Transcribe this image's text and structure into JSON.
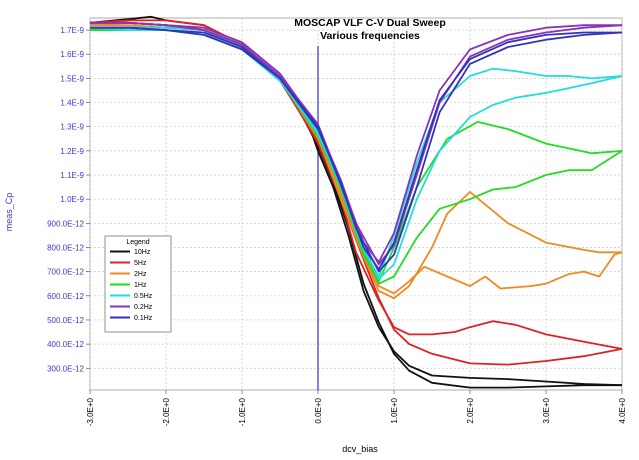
{
  "chart_data": {
    "type": "line",
    "title": "MOSCAP VLF C-V Dual Sweep",
    "subtitle": "Various frequencies",
    "xlabel": "dcv_bias",
    "ylabel": "meas_Cp",
    "xlim": [
      -3.0,
      4.0
    ],
    "ylim": [
      2.1e-10,
      1.75e-09
    ],
    "x_ticks": [
      -3,
      -2,
      -1,
      0,
      1,
      2,
      3,
      4
    ],
    "x_tick_labels": [
      "-3.0E+0",
      "-2.0E+0",
      "-1.0E+0",
      "0.0E+0",
      "1.0E+0",
      "2.0E+0",
      "3.0E+0",
      "4.0E+0"
    ],
    "y_ticks": [
      3e-10,
      4e-10,
      5e-10,
      6e-10,
      7e-10,
      8e-10,
      9e-10,
      1e-09,
      1.1e-09,
      1.2e-09,
      1.3e-09,
      1.4e-09,
      1.5e-09,
      1.6e-09,
      1.7e-09
    ],
    "y_tick_labels": [
      "300.0E-12",
      "400.0E-12",
      "500.0E-12",
      "600.0E-12",
      "700.0E-12",
      "800.0E-12",
      "900.0E-12",
      "1.0E-9",
      "1.1E-9",
      "1.2E-9",
      "1.3E-9",
      "1.4E-9",
      "1.5E-9",
      "1.6E-9",
      "1.7E-9"
    ],
    "vertical_marker_x": 0,
    "legend": {
      "title": "Legend",
      "position": "lower-left"
    },
    "series": [
      {
        "name": "10Hz",
        "color": "#111111",
        "forward": [
          [
            -3.0,
            1.73e-09
          ],
          [
            -2.5,
            1.745e-09
          ],
          [
            -2.2,
            1.755e-09
          ],
          [
            -2.0,
            1.74e-09
          ],
          [
            -1.5,
            1.72e-09
          ],
          [
            -1.0,
            1.64e-09
          ],
          [
            -0.5,
            1.5e-09
          ],
          [
            -0.2,
            1.38e-09
          ],
          [
            0.0,
            1.2e-09
          ],
          [
            0.2,
            1.05e-09
          ],
          [
            0.4,
            8.5e-10
          ],
          [
            0.6,
            6.2e-10
          ],
          [
            0.8,
            4.7e-10
          ],
          [
            1.0,
            3.7e-10
          ],
          [
            1.2,
            3.1e-10
          ],
          [
            1.5,
            2.7e-10
          ],
          [
            2.0,
            2.6e-10
          ],
          [
            2.5,
            2.55e-10
          ],
          [
            3.0,
            2.45e-10
          ],
          [
            3.5,
            2.35e-10
          ],
          [
            4.0,
            2.3e-10
          ]
        ],
        "reverse": [
          [
            4.0,
            2.3e-10
          ],
          [
            3.5,
            2.3e-10
          ],
          [
            3.0,
            2.25e-10
          ],
          [
            2.5,
            2.2e-10
          ],
          [
            2.0,
            2.2e-10
          ],
          [
            1.5,
            2.4e-10
          ],
          [
            1.2,
            2.9e-10
          ],
          [
            1.0,
            3.6e-10
          ],
          [
            0.8,
            4.9e-10
          ],
          [
            0.6,
            6.5e-10
          ],
          [
            0.4,
            8.8e-10
          ],
          [
            0.2,
            1.07e-09
          ],
          [
            0.0,
            1.22e-09
          ],
          [
            -0.2,
            1.34e-09
          ],
          [
            -0.5,
            1.5e-09
          ],
          [
            -1.0,
            1.63e-09
          ],
          [
            -1.5,
            1.7e-09
          ],
          [
            -2.0,
            1.72e-09
          ],
          [
            -2.5,
            1.73e-09
          ],
          [
            -3.0,
            1.73e-09
          ]
        ]
      },
      {
        "name": "5Hz",
        "color": "#dd2222",
        "forward": [
          [
            -3.0,
            1.73e-09
          ],
          [
            -2.5,
            1.74e-09
          ],
          [
            -2.0,
            1.74e-09
          ],
          [
            -1.5,
            1.72e-09
          ],
          [
            -1.0,
            1.64e-09
          ],
          [
            -0.5,
            1.5e-09
          ],
          [
            0.0,
            1.23e-09
          ],
          [
            0.3,
            1e-09
          ],
          [
            0.5,
            7.8e-10
          ],
          [
            0.8,
            5.8e-10
          ],
          [
            1.0,
            4.7e-10
          ],
          [
            1.2,
            4.4e-10
          ],
          [
            1.5,
            4.4e-10
          ],
          [
            1.8,
            4.5e-10
          ],
          [
            2.0,
            4.7e-10
          ],
          [
            2.3,
            4.95e-10
          ],
          [
            2.6,
            4.8e-10
          ],
          [
            3.0,
            4.4e-10
          ],
          [
            3.5,
            4.1e-10
          ],
          [
            4.0,
            3.8e-10
          ]
        ],
        "reverse": [
          [
            4.0,
            3.8e-10
          ],
          [
            3.5,
            3.5e-10
          ],
          [
            3.0,
            3.3e-10
          ],
          [
            2.5,
            3.15e-10
          ],
          [
            2.0,
            3.2e-10
          ],
          [
            1.5,
            3.6e-10
          ],
          [
            1.2,
            4e-10
          ],
          [
            1.0,
            4.6e-10
          ],
          [
            0.8,
            5.9e-10
          ],
          [
            0.6,
            7.5e-10
          ],
          [
            0.3,
            1e-09
          ],
          [
            0.0,
            1.24e-09
          ],
          [
            -0.5,
            1.49e-09
          ],
          [
            -1.0,
            1.63e-09
          ],
          [
            -1.5,
            1.7e-09
          ],
          [
            -2.0,
            1.72e-09
          ],
          [
            -2.5,
            1.73e-09
          ],
          [
            -3.0,
            1.73e-09
          ]
        ]
      },
      {
        "name": "2Hz",
        "color": "#ee8a22",
        "forward": [
          [
            -3.0,
            1.72e-09
          ],
          [
            -2.5,
            1.73e-09
          ],
          [
            -2.0,
            1.72e-09
          ],
          [
            -1.5,
            1.71e-09
          ],
          [
            -1.0,
            1.64e-09
          ],
          [
            -0.5,
            1.5e-09
          ],
          [
            0.0,
            1.25e-09
          ],
          [
            0.3,
            1.02e-09
          ],
          [
            0.5,
            8.4e-10
          ],
          [
            0.8,
            6.4e-10
          ],
          [
            1.0,
            6.1e-10
          ],
          [
            1.2,
            6.6e-10
          ],
          [
            1.4,
            7.2e-10
          ],
          [
            1.7,
            6.8e-10
          ],
          [
            2.0,
            6.4e-10
          ],
          [
            2.2,
            6.8e-10
          ],
          [
            2.4,
            6.3e-10
          ],
          [
            2.8,
            6.4e-10
          ],
          [
            3.0,
            6.5e-10
          ],
          [
            3.3,
            6.9e-10
          ],
          [
            3.5,
            7e-10
          ],
          [
            3.7,
            6.8e-10
          ],
          [
            3.9,
            7.7e-10
          ],
          [
            4.0,
            7.8e-10
          ]
        ],
        "reverse": [
          [
            4.0,
            7.8e-10
          ],
          [
            3.7,
            7.8e-10
          ],
          [
            3.5,
            7.9e-10
          ],
          [
            3.0,
            8.2e-10
          ],
          [
            2.5,
            9e-10
          ],
          [
            2.0,
            1.03e-09
          ],
          [
            1.7,
            9.4e-10
          ],
          [
            1.5,
            8e-10
          ],
          [
            1.2,
            6.4e-10
          ],
          [
            1.0,
            5.9e-10
          ],
          [
            0.8,
            6.2e-10
          ],
          [
            0.6,
            7.6e-10
          ],
          [
            0.3,
            1e-09
          ],
          [
            0.0,
            1.26e-09
          ],
          [
            -0.5,
            1.5e-09
          ],
          [
            -1.0,
            1.63e-09
          ],
          [
            -1.5,
            1.7e-09
          ],
          [
            -2.0,
            1.71e-09
          ],
          [
            -2.5,
            1.72e-09
          ],
          [
            -3.0,
            1.72e-09
          ]
        ]
      },
      {
        "name": "1Hz",
        "color": "#22dd22",
        "forward": [
          [
            -3.0,
            1.7e-09
          ],
          [
            -2.5,
            1.71e-09
          ],
          [
            -2.0,
            1.71e-09
          ],
          [
            -1.5,
            1.7e-09
          ],
          [
            -1.0,
            1.63e-09
          ],
          [
            -0.5,
            1.5e-09
          ],
          [
            0.0,
            1.26e-09
          ],
          [
            0.3,
            1.05e-09
          ],
          [
            0.5,
            8.6e-10
          ],
          [
            0.8,
            6.5e-10
          ],
          [
            1.0,
            6.8e-10
          ],
          [
            1.3,
            8.4e-10
          ],
          [
            1.6,
            9.6e-10
          ],
          [
            2.0,
            1e-09
          ],
          [
            2.3,
            1.04e-09
          ],
          [
            2.6,
            1.05e-09
          ],
          [
            3.0,
            1.1e-09
          ],
          [
            3.3,
            1.12e-09
          ],
          [
            3.6,
            1.12e-09
          ],
          [
            4.0,
            1.2e-09
          ]
        ],
        "reverse": [
          [
            4.0,
            1.2e-09
          ],
          [
            3.6,
            1.19e-09
          ],
          [
            3.3,
            1.21e-09
          ],
          [
            3.0,
            1.23e-09
          ],
          [
            2.5,
            1.29e-09
          ],
          [
            2.1,
            1.32e-09
          ],
          [
            1.7,
            1.25e-09
          ],
          [
            1.3,
            1.05e-09
          ],
          [
            1.0,
            8e-10
          ],
          [
            0.8,
            6.6e-10
          ],
          [
            0.6,
            7.7e-10
          ],
          [
            0.3,
            1.04e-09
          ],
          [
            0.0,
            1.27e-09
          ],
          [
            -0.5,
            1.49e-09
          ],
          [
            -1.0,
            1.62e-09
          ],
          [
            -1.5,
            1.68e-09
          ],
          [
            -2.0,
            1.7e-09
          ],
          [
            -2.5,
            1.7e-09
          ],
          [
            -3.0,
            1.7e-09
          ]
        ]
      },
      {
        "name": "0.5Hz",
        "color": "#22dddd",
        "forward": [
          [
            -3.0,
            1.71e-09
          ],
          [
            -2.5,
            1.71e-09
          ],
          [
            -2.0,
            1.71e-09
          ],
          [
            -1.5,
            1.7e-09
          ],
          [
            -1.0,
            1.63e-09
          ],
          [
            -0.5,
            1.5e-09
          ],
          [
            0.0,
            1.27e-09
          ],
          [
            0.3,
            1.06e-09
          ],
          [
            0.5,
            8.7e-10
          ],
          [
            0.8,
            6.7e-10
          ],
          [
            1.0,
            7.3e-10
          ],
          [
            1.3,
            1e-09
          ],
          [
            1.6,
            1.2e-09
          ],
          [
            2.0,
            1.34e-09
          ],
          [
            2.3,
            1.39e-09
          ],
          [
            2.6,
            1.42e-09
          ],
          [
            3.0,
            1.44e-09
          ],
          [
            3.3,
            1.46e-09
          ],
          [
            3.6,
            1.48e-09
          ],
          [
            4.0,
            1.51e-09
          ]
        ],
        "reverse": [
          [
            4.0,
            1.51e-09
          ],
          [
            3.6,
            1.5e-09
          ],
          [
            3.3,
            1.51e-09
          ],
          [
            3.0,
            1.51e-09
          ],
          [
            2.6,
            1.53e-09
          ],
          [
            2.3,
            1.54e-09
          ],
          [
            2.0,
            1.51e-09
          ],
          [
            1.6,
            1.4e-09
          ],
          [
            1.3,
            1.15e-09
          ],
          [
            1.0,
            8.5e-10
          ],
          [
            0.8,
            6.8e-10
          ],
          [
            0.6,
            7.9e-10
          ],
          [
            0.3,
            1.05e-09
          ],
          [
            0.0,
            1.28e-09
          ],
          [
            -0.5,
            1.49e-09
          ],
          [
            -1.0,
            1.62e-09
          ],
          [
            -1.5,
            1.68e-09
          ],
          [
            -2.0,
            1.7e-09
          ],
          [
            -2.5,
            1.7e-09
          ],
          [
            -3.0,
            1.71e-09
          ]
        ]
      },
      {
        "name": "0.2Hz",
        "color": "#8833bb",
        "forward": [
          [
            -3.0,
            1.73e-09
          ],
          [
            -2.5,
            1.73e-09
          ],
          [
            -2.0,
            1.72e-09
          ],
          [
            -1.5,
            1.71e-09
          ],
          [
            -1.0,
            1.65e-09
          ],
          [
            -0.5,
            1.52e-09
          ],
          [
            0.0,
            1.3e-09
          ],
          [
            0.3,
            1.08e-09
          ],
          [
            0.5,
            9e-10
          ],
          [
            0.8,
            7.3e-10
          ],
          [
            1.0,
            8.1e-10
          ],
          [
            1.3,
            1.1e-09
          ],
          [
            1.6,
            1.4e-09
          ],
          [
            2.0,
            1.59e-09
          ],
          [
            2.5,
            1.66e-09
          ],
          [
            3.0,
            1.69e-09
          ],
          [
            3.5,
            1.71e-09
          ],
          [
            4.0,
            1.72e-09
          ]
        ],
        "reverse": [
          [
            4.0,
            1.72e-09
          ],
          [
            3.5,
            1.72e-09
          ],
          [
            3.0,
            1.71e-09
          ],
          [
            2.5,
            1.68e-09
          ],
          [
            2.0,
            1.62e-09
          ],
          [
            1.6,
            1.45e-09
          ],
          [
            1.3,
            1.18e-09
          ],
          [
            1.0,
            8.6e-10
          ],
          [
            0.8,
            7.4e-10
          ],
          [
            0.6,
            8.2e-10
          ],
          [
            0.3,
            1.07e-09
          ],
          [
            0.0,
            1.31e-09
          ],
          [
            -0.5,
            1.51e-09
          ],
          [
            -1.0,
            1.64e-09
          ],
          [
            -1.5,
            1.7e-09
          ],
          [
            -2.0,
            1.72e-09
          ],
          [
            -2.5,
            1.73e-09
          ],
          [
            -3.0,
            1.73e-09
          ]
        ]
      },
      {
        "name": "0.1Hz",
        "color": "#3333bb",
        "forward": [
          [
            -3.0,
            1.71e-09
          ],
          [
            -2.5,
            1.71e-09
          ],
          [
            -2.0,
            1.7e-09
          ],
          [
            -1.5,
            1.69e-09
          ],
          [
            -1.0,
            1.63e-09
          ],
          [
            -0.5,
            1.5e-09
          ],
          [
            0.0,
            1.29e-09
          ],
          [
            0.3,
            1.07e-09
          ],
          [
            0.5,
            8.8e-10
          ],
          [
            0.8,
            7e-10
          ],
          [
            1.0,
            7.7e-10
          ],
          [
            1.3,
            1.05e-09
          ],
          [
            1.6,
            1.36e-09
          ],
          [
            2.0,
            1.56e-09
          ],
          [
            2.5,
            1.63e-09
          ],
          [
            3.0,
            1.66e-09
          ],
          [
            3.5,
            1.68e-09
          ],
          [
            4.0,
            1.69e-09
          ]
        ],
        "reverse": [
          [
            4.0,
            1.69e-09
          ],
          [
            3.5,
            1.69e-09
          ],
          [
            3.0,
            1.68e-09
          ],
          [
            2.5,
            1.65e-09
          ],
          [
            2.0,
            1.58e-09
          ],
          [
            1.6,
            1.41e-09
          ],
          [
            1.3,
            1.12e-09
          ],
          [
            1.0,
            8.2e-10
          ],
          [
            0.8,
            7.1e-10
          ],
          [
            0.6,
            8e-10
          ],
          [
            0.3,
            1.06e-09
          ],
          [
            0.0,
            1.3e-09
          ],
          [
            -0.5,
            1.5e-09
          ],
          [
            -1.0,
            1.62e-09
          ],
          [
            -1.5,
            1.68e-09
          ],
          [
            -2.0,
            1.7e-09
          ],
          [
            -2.5,
            1.71e-09
          ],
          [
            -3.0,
            1.71e-09
          ]
        ]
      }
    ]
  }
}
